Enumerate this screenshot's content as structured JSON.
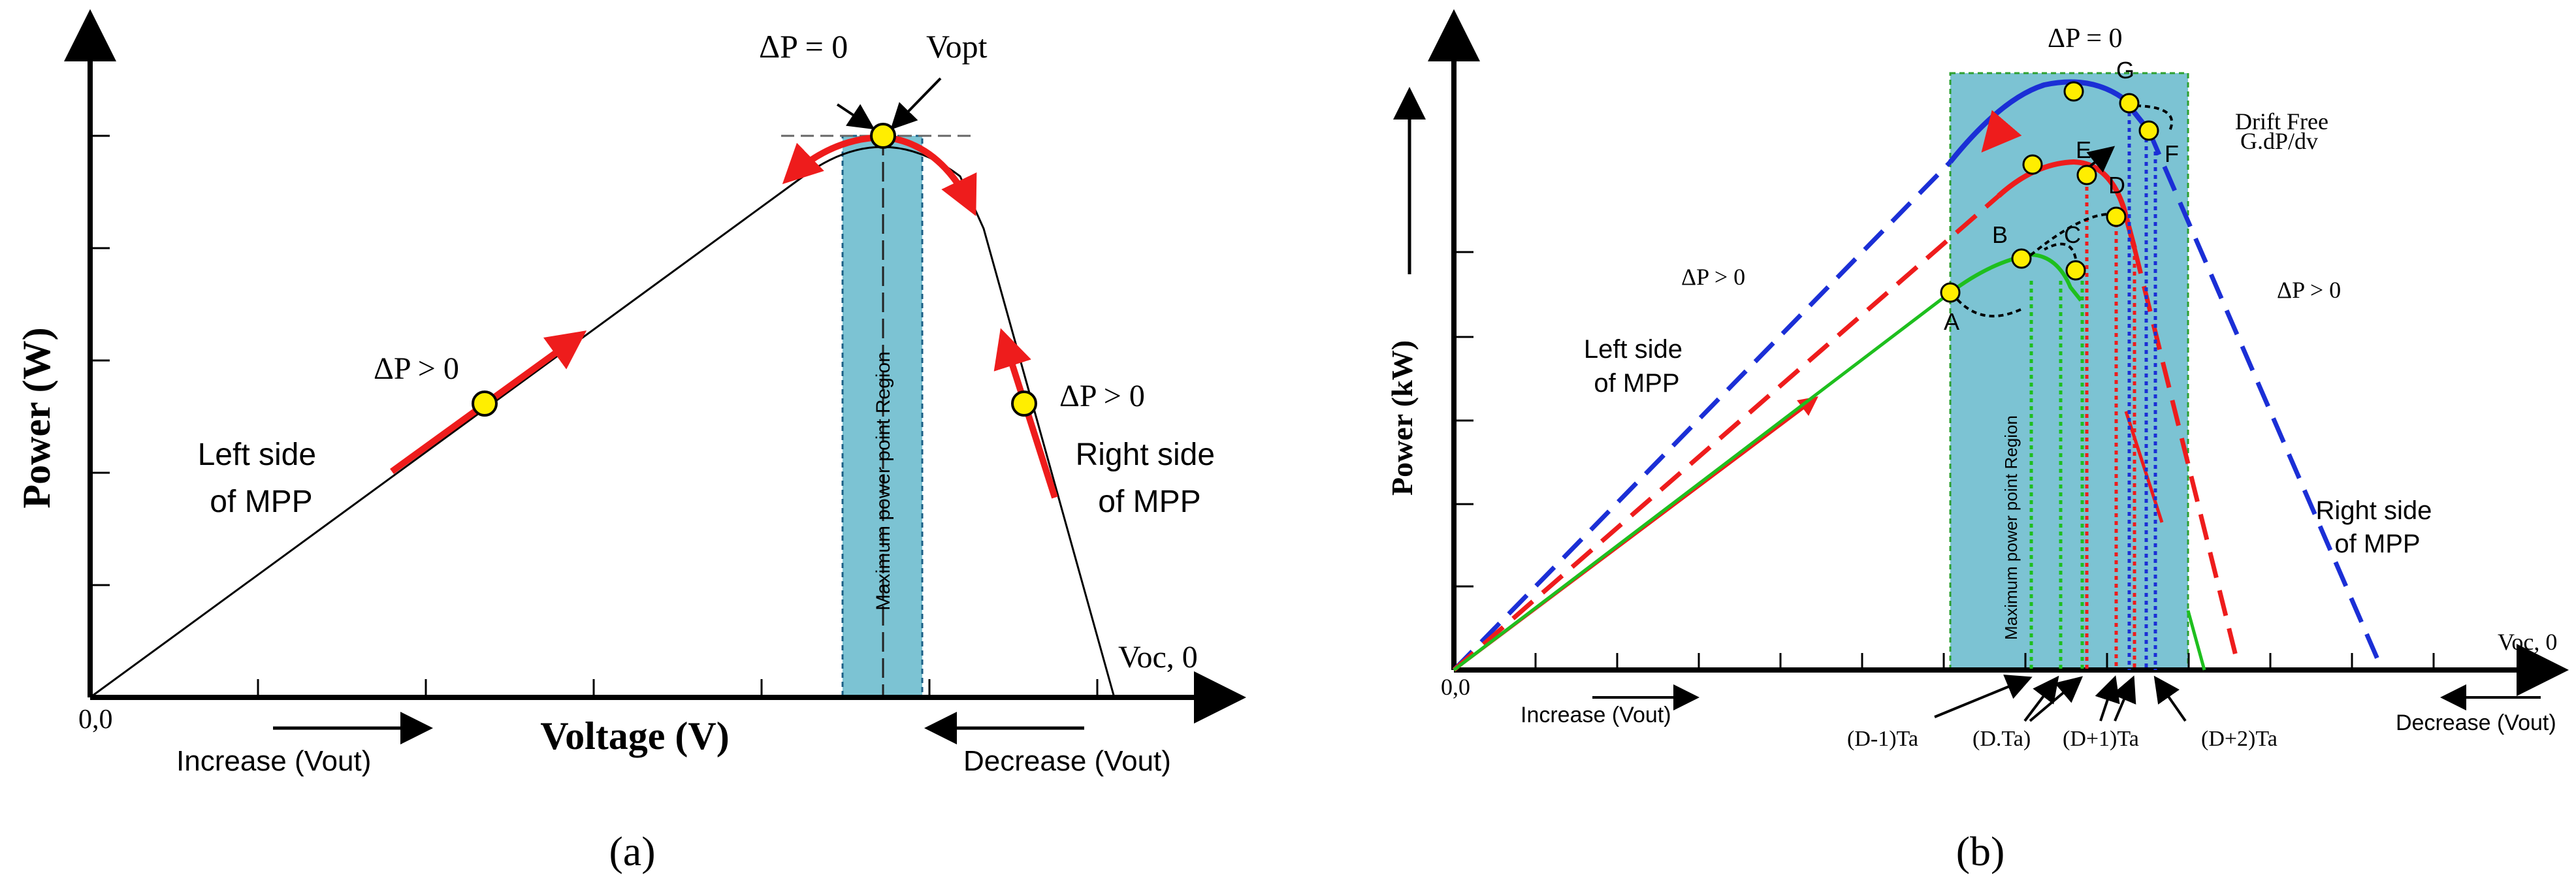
{
  "panel_a": {
    "caption": "(a)",
    "y_axis_label": "Power (W)",
    "x_axis_label": "Voltage (V)",
    "origin_label": "0,0",
    "delta_p_zero": "ΔP = 0",
    "v_opt": "Vopt",
    "delta_p_left": "ΔP > 0",
    "delta_p_right": "ΔP > 0",
    "left_side_l1": "Left side",
    "left_side_l2": "of MPP",
    "right_side_l1": "Right side",
    "right_side_l2": "of MPP",
    "voc_label": "Voc, 0",
    "increase_label": "Increase (Vout)",
    "decrease_label": "Decrease (Vout)",
    "region_label": "Maximum power point Region"
  },
  "panel_b": {
    "caption": "(b)",
    "y_axis_label": "Power (kW)",
    "origin_label": "0,0",
    "delta_p_zero": "ΔP = 0",
    "delta_p_left": "ΔP > 0",
    "delta_p_right": "ΔP > 0",
    "drift_free_l1": "Drift Free",
    "drift_free_l2": "G.dP/dv",
    "left_side_l1": "Left side",
    "left_side_l2": "of MPP",
    "right_side_l1": "Right side",
    "right_side_l2": "of MPP",
    "voc_label": "Voc, 0",
    "increase_label": "Increase (Vout)",
    "decrease_label": "Decrease (Vout)",
    "region_label": "Maximum power point Region",
    "points": [
      "A",
      "B",
      "C",
      "D",
      "E",
      "F",
      "G"
    ],
    "time_labels": [
      "(D-1)Ta",
      "(D.Ta)",
      "(D+1)Ta",
      "(D+2)Ta"
    ]
  },
  "colors": {
    "red": "#ee1c1c",
    "blue": "#1b2fd6",
    "green": "#1ebf1e",
    "region": "#7cc3d3",
    "point": "#ffee00"
  }
}
